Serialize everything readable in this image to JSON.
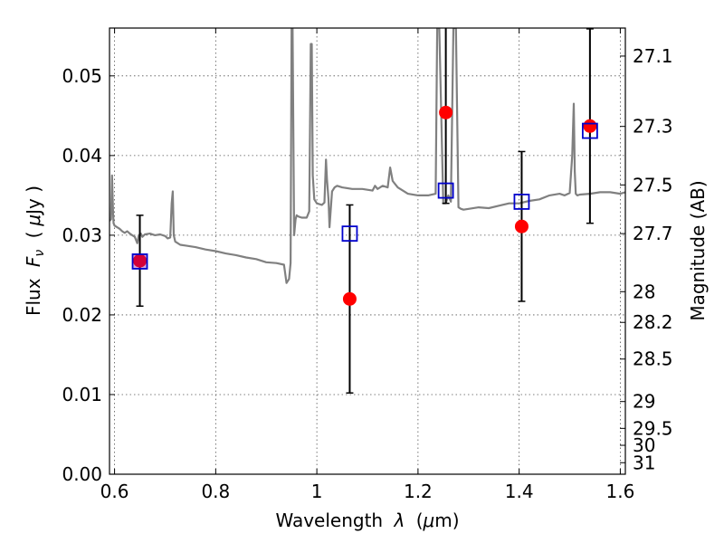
{
  "chart_data": {
    "type": "scatter",
    "xlabel": "Wavelength",
    "xlabel_symbol": "λ",
    "xlabel_unit_prefix": "(",
    "xlabel_unit_mu": "μ",
    "xlabel_unit_rest": "m)",
    "ylabel": "Flux",
    "ylabel_symbol_main": "F",
    "ylabel_symbol_sub": "ν",
    "ylabel_unit_open": "(",
    "ylabel_unit_mu": "μ",
    "ylabel_unit_rest": "Jy )",
    "y2label": "Magnitude (AB)",
    "xlim": [
      0.59,
      1.61
    ],
    "ylim": [
      0.0,
      0.056
    ],
    "grid": true,
    "x_ticks": [
      {
        "value": 0.6,
        "label": "0.6"
      },
      {
        "value": 0.8,
        "label": "0.8"
      },
      {
        "value": 1.0,
        "label": "1"
      },
      {
        "value": 1.2,
        "label": "1.2"
      },
      {
        "value": 1.4,
        "label": "1.4"
      },
      {
        "value": 1.6,
        "label": "1.6"
      }
    ],
    "y_ticks": [
      {
        "value": 0.0,
        "label": "0.00"
      },
      {
        "value": 0.01,
        "label": "0.01"
      },
      {
        "value": 0.02,
        "label": "0.02"
      },
      {
        "value": 0.03,
        "label": "0.03"
      },
      {
        "value": 0.04,
        "label": "0.04"
      },
      {
        "value": 0.05,
        "label": "0.05"
      }
    ],
    "y2_ticks": [
      {
        "mag": 27.1,
        "label": "27.1"
      },
      {
        "mag": 27.3,
        "label": "27.3"
      },
      {
        "mag": 27.5,
        "label": "27.5"
      },
      {
        "mag": 27.7,
        "label": "27.7"
      },
      {
        "mag": 28,
        "label": "28"
      },
      {
        "mag": 28.2,
        "label": "28.2"
      },
      {
        "mag": 28.5,
        "label": "28.5"
      },
      {
        "mag": 29,
        "label": "29"
      },
      {
        "mag": 29.5,
        "label": "29.5"
      },
      {
        "mag": 30,
        "label": "30"
      },
      {
        "mag": 31,
        "label": "31"
      }
    ],
    "series": [
      {
        "kind": "spectrum-line",
        "color": "#808080",
        "x": [
          0.59,
          0.593,
          0.595,
          0.597,
          0.598,
          0.6,
          0.605,
          0.61,
          0.615,
          0.62,
          0.625,
          0.63,
          0.635,
          0.64,
          0.645,
          0.648,
          0.652,
          0.655,
          0.66,
          0.67,
          0.68,
          0.69,
          0.7,
          0.705,
          0.71,
          0.713,
          0.715,
          0.717,
          0.72,
          0.73,
          0.74,
          0.76,
          0.78,
          0.8,
          0.82,
          0.84,
          0.86,
          0.88,
          0.9,
          0.92,
          0.935,
          0.94,
          0.945,
          0.948,
          0.95,
          0.952,
          0.955,
          0.958,
          0.96,
          0.962,
          0.965,
          0.97,
          0.98,
          0.985,
          0.988,
          0.99,
          0.992,
          0.995,
          1.0,
          1.005,
          1.01,
          1.015,
          1.018,
          1.02,
          1.023,
          1.025,
          1.03,
          1.035,
          1.04,
          1.05,
          1.07,
          1.09,
          1.11,
          1.115,
          1.12,
          1.125,
          1.13,
          1.14,
          1.145,
          1.15,
          1.16,
          1.17,
          1.18,
          1.2,
          1.22,
          1.235,
          1.238,
          1.24,
          1.242,
          1.25,
          1.255,
          1.26,
          1.265,
          1.27,
          1.272,
          1.275,
          1.28,
          1.285,
          1.29,
          1.3,
          1.32,
          1.34,
          1.36,
          1.38,
          1.4,
          1.42,
          1.44,
          1.46,
          1.48,
          1.49,
          1.5,
          1.505,
          1.508,
          1.51,
          1.512,
          1.515,
          1.52,
          1.54,
          1.56,
          1.58,
          1.6,
          1.61
        ],
        "y": [
          0.0318,
          0.032,
          0.0375,
          0.033,
          0.0315,
          0.0312,
          0.031,
          0.0308,
          0.0305,
          0.0303,
          0.0305,
          0.0302,
          0.03,
          0.0298,
          0.029,
          0.03,
          0.0302,
          0.0298,
          0.0301,
          0.0302,
          0.03,
          0.0301,
          0.0299,
          0.0296,
          0.0297,
          0.034,
          0.0355,
          0.03,
          0.0292,
          0.0288,
          0.0287,
          0.0285,
          0.0282,
          0.028,
          0.0277,
          0.0275,
          0.0272,
          0.027,
          0.0266,
          0.0265,
          0.0263,
          0.024,
          0.0245,
          0.0265,
          0.056,
          0.056,
          0.03,
          0.032,
          0.0325,
          0.0324,
          0.0323,
          0.0322,
          0.0322,
          0.033,
          0.054,
          0.054,
          0.0375,
          0.0345,
          0.034,
          0.0339,
          0.0338,
          0.0341,
          0.0395,
          0.037,
          0.0345,
          0.031,
          0.0355,
          0.036,
          0.0362,
          0.036,
          0.0358,
          0.0358,
          0.0356,
          0.0362,
          0.0358,
          0.036,
          0.0362,
          0.036,
          0.0385,
          0.0368,
          0.036,
          0.0356,
          0.0352,
          0.035,
          0.035,
          0.0352,
          0.056,
          0.056,
          0.056,
          0.034,
          0.034,
          0.035,
          0.0342,
          0.056,
          0.056,
          0.056,
          0.0335,
          0.0333,
          0.0332,
          0.0333,
          0.0335,
          0.0334,
          0.0337,
          0.034,
          0.034,
          0.0343,
          0.0345,
          0.035,
          0.0352,
          0.035,
          0.0353,
          0.04,
          0.0465,
          0.038,
          0.0352,
          0.035,
          0.0351,
          0.0352,
          0.0354,
          0.0354,
          0.0352,
          0.0354
        ]
      },
      {
        "kind": "observed-points",
        "color": "#ff0000",
        "marker": "circle",
        "x": [
          0.65,
          1.065,
          1.255,
          1.405,
          1.54
        ],
        "y": [
          0.0268,
          0.022,
          0.0454,
          0.0311,
          0.0437
        ],
        "yerr_low": [
          0.0057,
          0.0118,
          0.0114,
          0.0094,
          0.0122
        ],
        "yerr_high": [
          0.0057,
          0.0118,
          0.0114,
          0.0094,
          0.0122
        ]
      },
      {
        "kind": "model-points",
        "color": "#0000cc",
        "marker": "open-square",
        "x": [
          0.65,
          1.065,
          1.255,
          1.405,
          1.54
        ],
        "y": [
          0.0267,
          0.0302,
          0.0356,
          0.0342,
          0.0431
        ]
      }
    ]
  }
}
